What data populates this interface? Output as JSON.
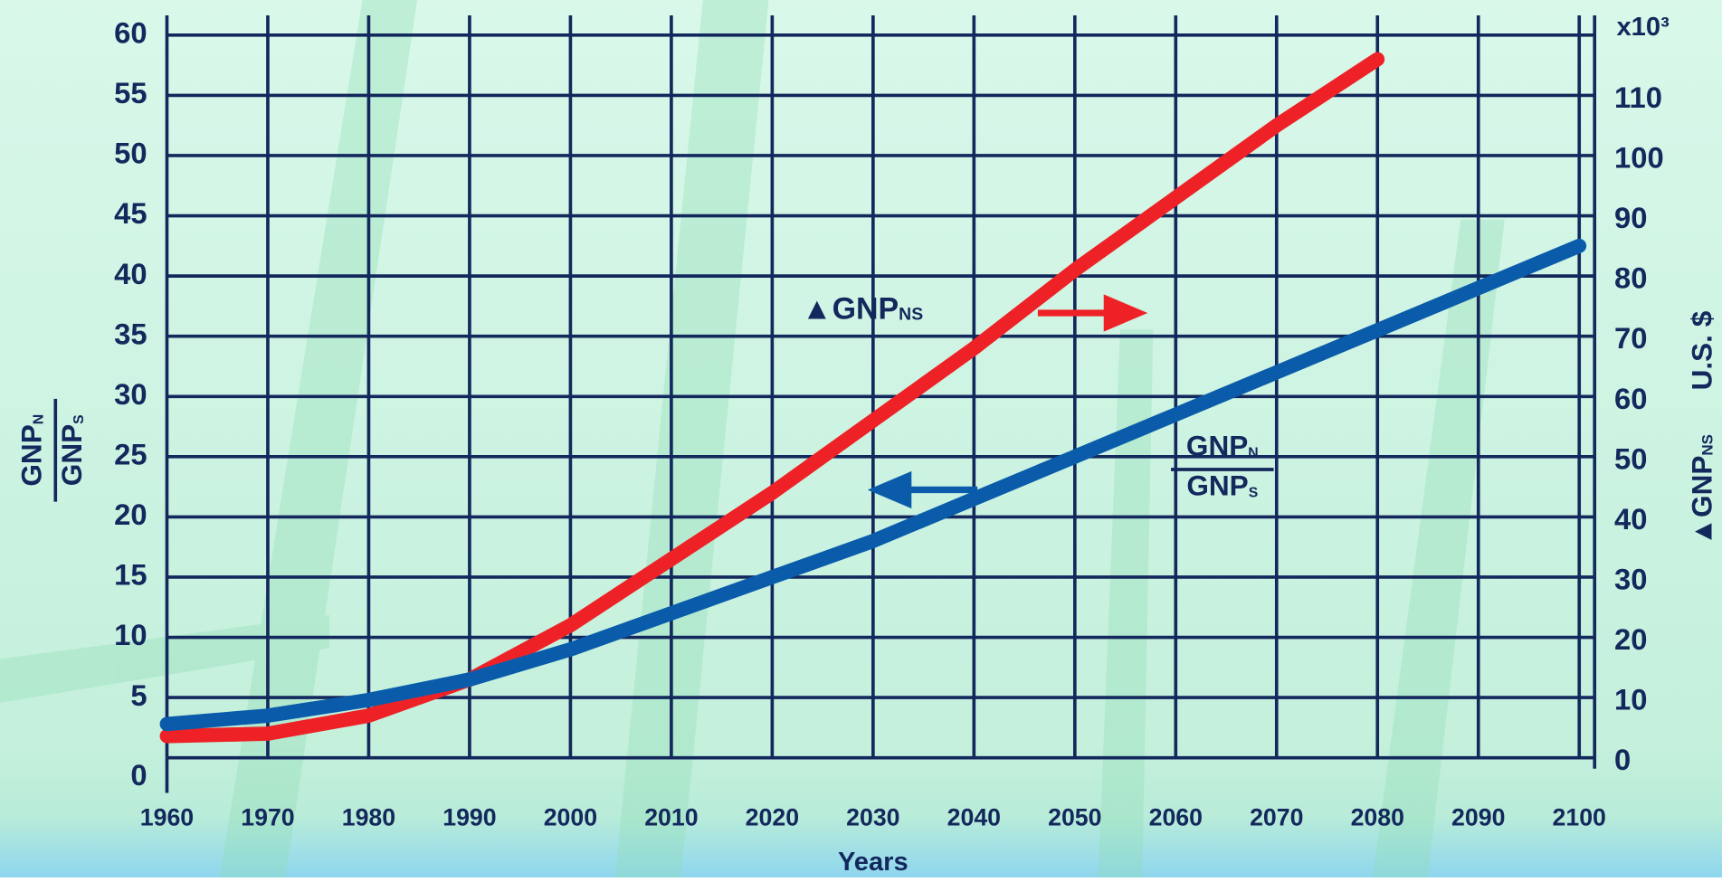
{
  "chart_data": {
    "type": "line",
    "x_label": "Years",
    "y_label": {
      "numerator": "GNP",
      "numerator_sub": "N",
      "denominator": "GNP",
      "denominator_sub": "S"
    },
    "y2_label": {
      "text": "▲GNP",
      "sub": "NS",
      "unit": "U.S. $"
    },
    "y2_multiplier": "x10³",
    "x": [
      1960,
      1970,
      1980,
      1990,
      2000,
      2010,
      2020,
      2030,
      2040,
      2050,
      2060,
      2070,
      2080,
      2090,
      2100
    ],
    "xlim": [
      1960,
      2100
    ],
    "xticks": [
      1960,
      1970,
      1980,
      1990,
      2000,
      2010,
      2020,
      2030,
      2040,
      2050,
      2060,
      2070,
      2080,
      2090,
      2100
    ],
    "ylim": [
      0,
      60
    ],
    "yticks": [
      0,
      5,
      10,
      15,
      20,
      25,
      30,
      35,
      40,
      45,
      50,
      55,
      60
    ],
    "y2lim": [
      0,
      120
    ],
    "y2ticks": [
      0,
      10,
      20,
      30,
      40,
      50,
      60,
      70,
      80,
      90,
      100,
      110
    ],
    "grid": true,
    "series": [
      {
        "name": "ratio",
        "color": "#0a5cab",
        "values": [
          2.8,
          3.5,
          4.8,
          6.5,
          9,
          12,
          15,
          18,
          21.5,
          25,
          28.5,
          32,
          35.5,
          39,
          42.5
        ]
      },
      {
        "name": "delta",
        "color": "#ee2226",
        "axis": "y2",
        "values": [
          3.6,
          4,
          7,
          13,
          22,
          33,
          44,
          56,
          68,
          81,
          93,
          105,
          116,
          null,
          null
        ]
      }
    ],
    "annotations": [
      {
        "text": "▲GNP",
        "sub": "NS"
      },
      {
        "numerator": "GNP",
        "numerator_sub": "N",
        "denominator": "GNP",
        "denominator_sub": "S"
      }
    ]
  }
}
